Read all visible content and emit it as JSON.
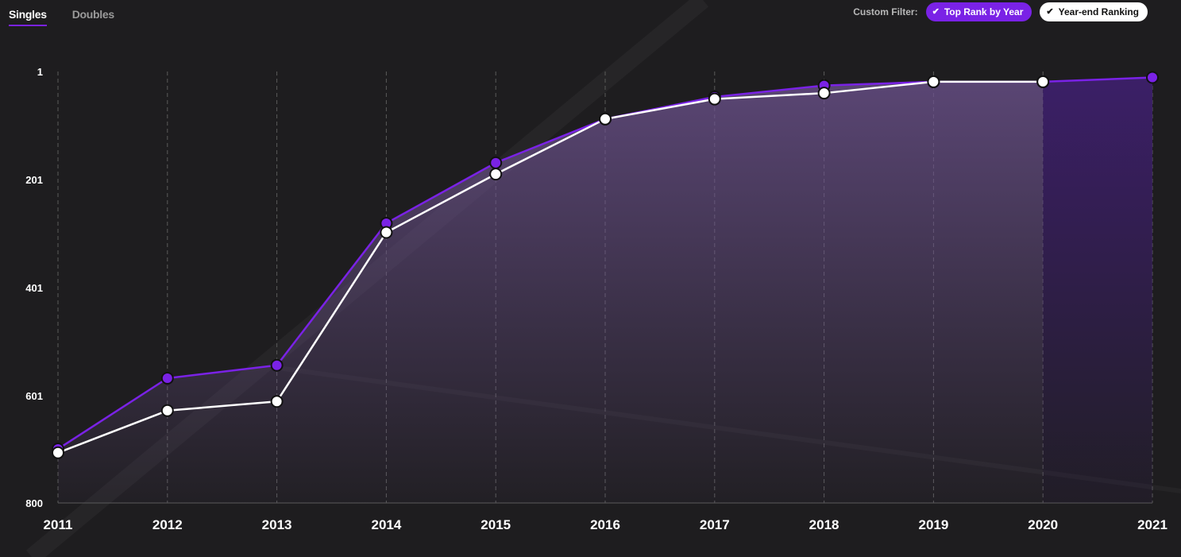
{
  "tabs": [
    {
      "label": "Singles",
      "active": true
    },
    {
      "label": "Doubles",
      "active": false
    }
  ],
  "filter": {
    "label": "Custom Filter:",
    "chips": [
      {
        "label": "Top Rank by Year",
        "checked": true,
        "color": "#7a22e6"
      },
      {
        "label": "Year-end Ranking",
        "checked": true,
        "color": "#ffffff"
      }
    ]
  },
  "chart_data": {
    "type": "line",
    "x": [
      "2011",
      "2012",
      "2013",
      "2014",
      "2015",
      "2016",
      "2017",
      "2018",
      "2019",
      "2020",
      "2021"
    ],
    "y_ticks": [
      "1",
      "201",
      "401",
      "601",
      "800"
    ],
    "ylim": [
      1,
      800
    ],
    "y_inverted": true,
    "grid": "vertical dashed",
    "series": [
      {
        "name": "Top Rank by Year",
        "color": "#7a22e6",
        "values": [
          700,
          569,
          545,
          282,
          170,
          89,
          48,
          27,
          20,
          20,
          12
        ]
      },
      {
        "name": "Year-end Ranking",
        "color": "#ffffff",
        "values": [
          707,
          629,
          612,
          299,
          191,
          89,
          52,
          41,
          20,
          20,
          null
        ]
      }
    ]
  }
}
